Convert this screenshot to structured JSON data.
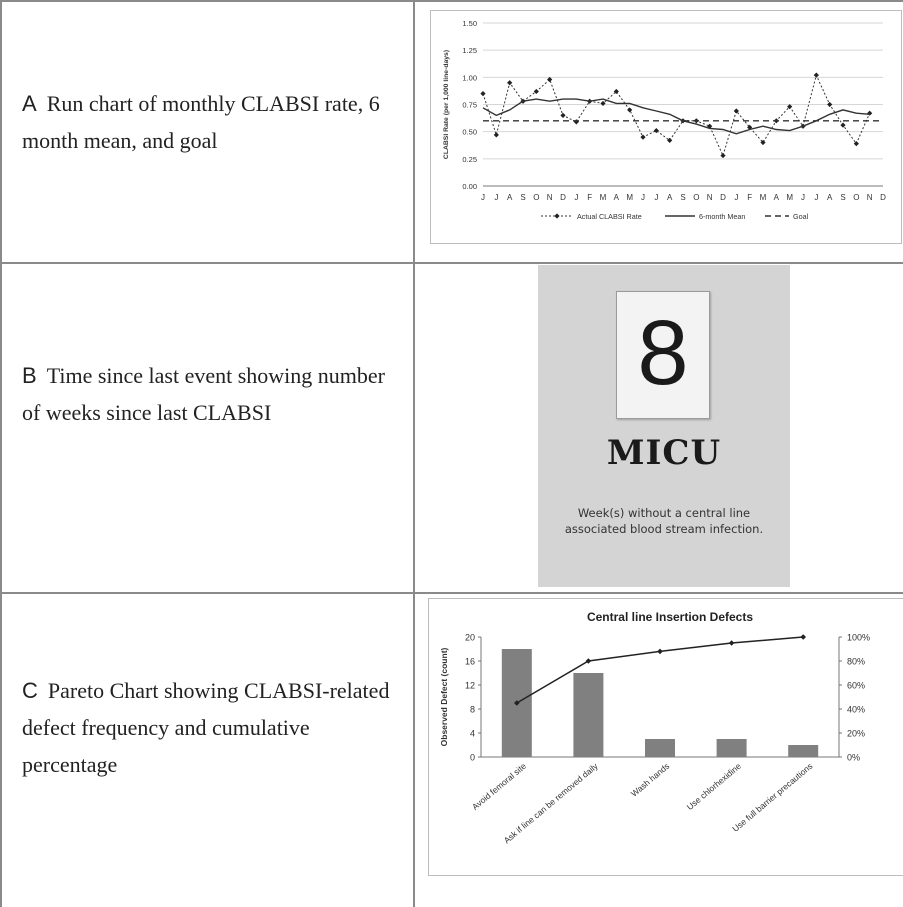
{
  "panels": {
    "a": {
      "letter": "A",
      "text": "Run chart of monthly CLABSI rate, 6 month mean, and goal"
    },
    "b": {
      "letter": "B",
      "text": "Time since last event showing number of weeks since last CLABSI"
    },
    "c": {
      "letter": "C",
      "text": "Pareto Chart showing CLABSI-related defect frequency and cumulative percentage"
    }
  },
  "photo": {
    "sign_number": "8",
    "unit": "MICU",
    "caption": "Week(s) without a central line associated blood stream infection."
  },
  "chart_data": [
    {
      "type": "line",
      "title": "",
      "ylabel": "CLABSI Rate (per 1,000 line-days)",
      "ylim": [
        0,
        1.5
      ],
      "yticks": [
        "0.00",
        "0.25",
        "0.50",
        "0.75",
        "1.00",
        "1.25",
        "1.50"
      ],
      "categories": [
        "J",
        "J",
        "A",
        "S",
        "O",
        "N",
        "D",
        "J",
        "F",
        "M",
        "A",
        "M",
        "J",
        "J",
        "A",
        "S",
        "O",
        "N",
        "D",
        "J",
        "F",
        "M",
        "A",
        "M",
        "J",
        "J",
        "A",
        "S",
        "O",
        "N",
        "D"
      ],
      "grid": true,
      "legend_position": "bottom",
      "series": [
        {
          "name": "Actual CLABSI Rate",
          "style": "dotted-diamond",
          "color": "#333333",
          "values": [
            0.85,
            0.47,
            0.95,
            0.78,
            0.87,
            0.98,
            0.65,
            0.59,
            0.78,
            0.76,
            0.87,
            0.7,
            0.45,
            0.51,
            0.42,
            0.6,
            0.6,
            0.55,
            0.28,
            0.69,
            0.54,
            0.4,
            0.6,
            0.73,
            0.55,
            1.02,
            0.75,
            0.56,
            0.39,
            0.67,
            null
          ]
        },
        {
          "name": "6-month Mean",
          "style": "solid",
          "color": "#333333",
          "values": [
            0.72,
            0.65,
            0.7,
            0.78,
            0.8,
            0.78,
            0.8,
            0.8,
            0.78,
            0.8,
            0.76,
            0.76,
            0.72,
            0.69,
            0.66,
            0.6,
            0.57,
            0.53,
            0.52,
            0.48,
            0.52,
            0.55,
            0.52,
            0.51,
            0.55,
            0.6,
            0.66,
            0.7,
            0.67,
            0.66,
            null
          ]
        },
        {
          "name": "Goal",
          "style": "dashed",
          "color": "#333333",
          "values": [
            0.6,
            0.6,
            0.6,
            0.6,
            0.6,
            0.6,
            0.6,
            0.6,
            0.6,
            0.6,
            0.6,
            0.6,
            0.6,
            0.6,
            0.6,
            0.6,
            0.6,
            0.6,
            0.6,
            0.6,
            0.6,
            0.6,
            0.6,
            0.6,
            0.6,
            0.6,
            0.6,
            0.6,
            0.6,
            0.6,
            0.6
          ]
        }
      ]
    },
    {
      "type": "bar",
      "title": "Central line Insertion Defects",
      "ylabel": "Observed Defect (count)",
      "ylim": [
        0,
        20
      ],
      "yticks": [
        "0",
        "4",
        "8",
        "12",
        "16",
        "20"
      ],
      "y2lim": [
        0,
        100
      ],
      "y2ticks": [
        "0%",
        "20%",
        "40%",
        "60%",
        "80%",
        "100%"
      ],
      "categories": [
        "Avoid femoral site",
        "Ask if line can be removed daily",
        "Wash hands",
        "Use chlorhexidine",
        "Use full barrier precautions"
      ],
      "series": [
        {
          "name": "Observed Defect (count)",
          "kind": "bar",
          "color": "#808080",
          "values": [
            18,
            14,
            3,
            3,
            2
          ]
        },
        {
          "name": "Cumulative %",
          "kind": "line",
          "color": "#222222",
          "values": [
            45,
            80,
            88,
            95,
            100
          ]
        }
      ]
    }
  ]
}
